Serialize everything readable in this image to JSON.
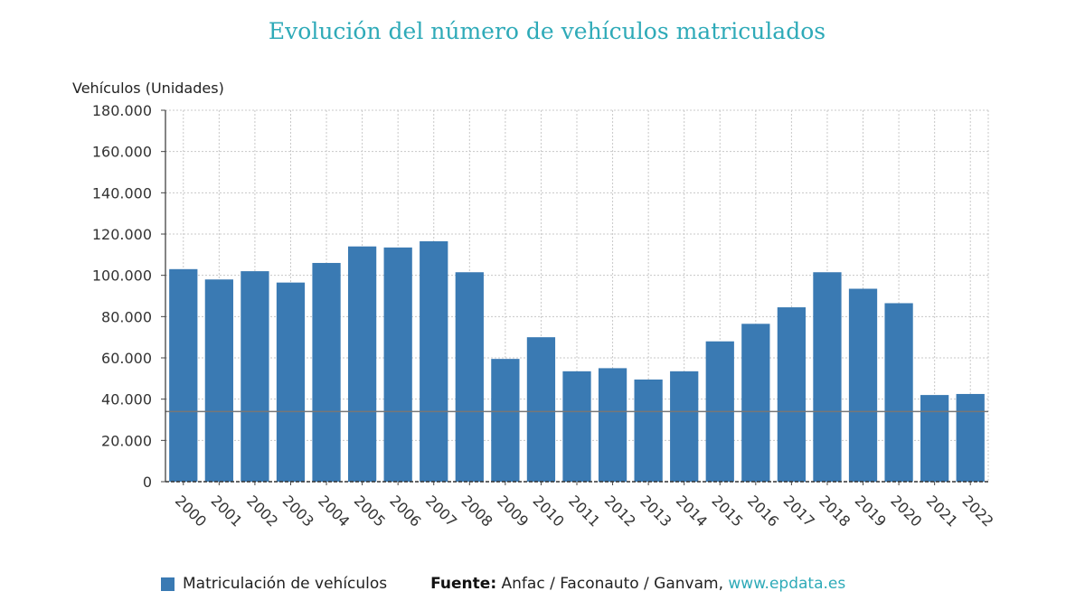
{
  "chart_data": {
    "type": "bar",
    "title": "Evolución del número de vehículos matriculados",
    "ylabel": "Vehículos (Unidades)",
    "categories": [
      "2000",
      "2001",
      "2002",
      "2003",
      "2004",
      "2005",
      "2006",
      "2007",
      "2008",
      "2009",
      "2010",
      "2011",
      "2012",
      "2013",
      "2014",
      "2015",
      "2016",
      "2017",
      "2018",
      "2019",
      "2020",
      "2021",
      "2022"
    ],
    "series": [
      {
        "name": "Matriculación de vehículos",
        "color": "#3a7ab3",
        "values": [
          103000,
          98000,
          102000,
          96500,
          106000,
          114000,
          113500,
          116500,
          101500,
          59500,
          70000,
          53500,
          55000,
          49500,
          53500,
          68000,
          76500,
          84500,
          101500,
          93500,
          86500,
          42000,
          42500
        ]
      }
    ],
    "yticks": [
      "0",
      "20.000",
      "40.000",
      "60.000",
      "80.000",
      "100.000",
      "120.000",
      "140.000",
      "160.000",
      "180.000"
    ],
    "ylim": [
      0,
      180000
    ],
    "reference_line": 34000,
    "grid": true,
    "legend_position": "bottom-left"
  },
  "source": {
    "label": "Fuente:",
    "text": "Anfac / Faconauto / Ganvam,",
    "link": "www.epdata.es"
  }
}
